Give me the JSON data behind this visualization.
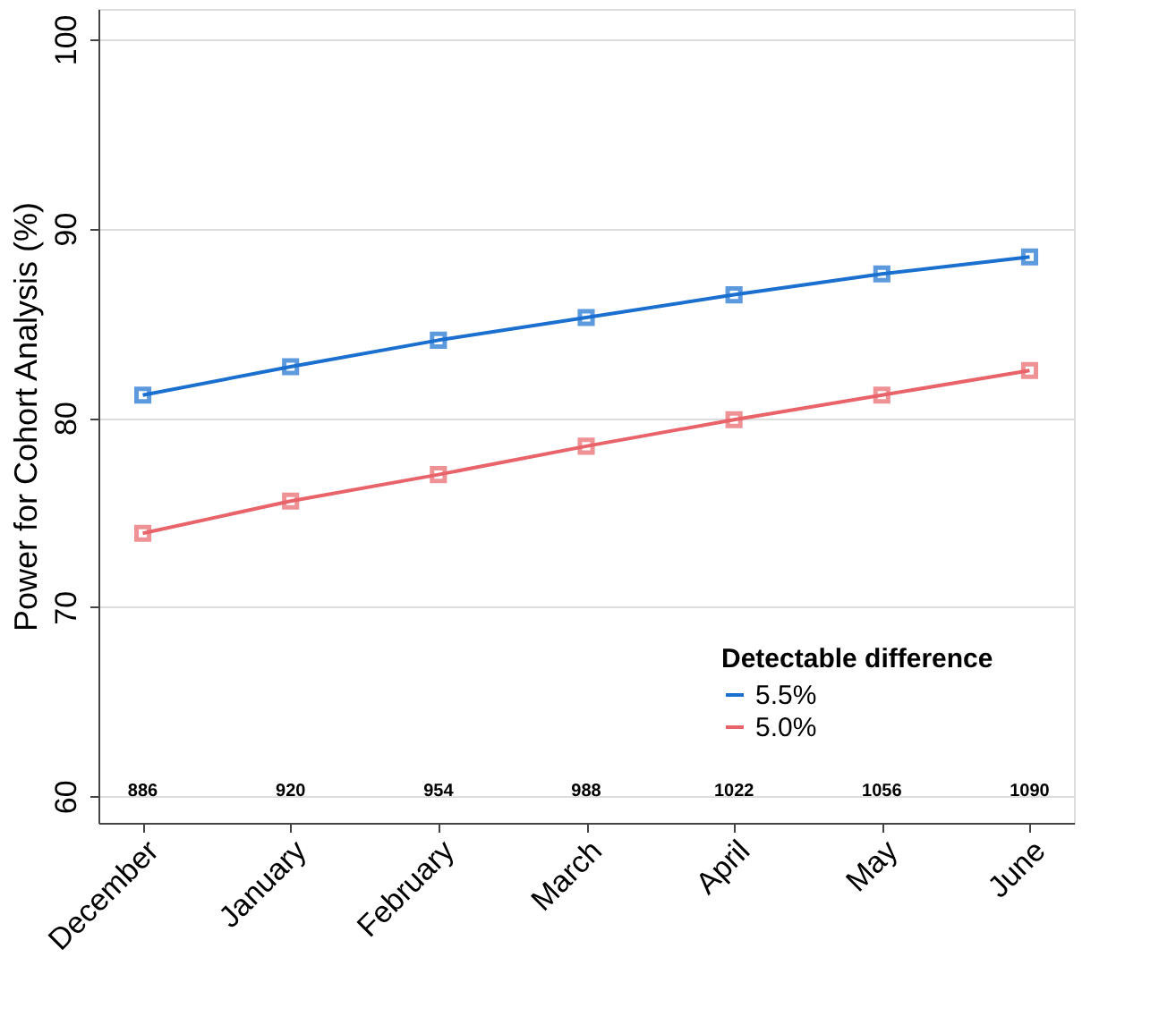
{
  "chart_data": {
    "type": "line",
    "ylabel": "Power for Cohort Analysis (%)",
    "legend_title": "Detectable difference",
    "categories": [
      "December",
      "January",
      "February",
      "March",
      "April",
      "May",
      "June"
    ],
    "series": [
      {
        "name": "5.5%",
        "color": "#1a6fcf",
        "values": [
          81.2,
          82.7,
          84.1,
          85.3,
          86.5,
          87.6,
          88.5
        ]
      },
      {
        "name": "5.0%",
        "color": "#e8646a",
        "values": [
          73.9,
          75.6,
          77.0,
          78.5,
          79.9,
          81.2,
          82.5
        ]
      }
    ],
    "ylim": [
      58.6,
      101.6
    ],
    "yticks": [
      60,
      70,
      80,
      90,
      100
    ],
    "grid": "y",
    "legend": "bottom right",
    "marker": "square",
    "line_style": "solid",
    "annotations": [
      "886",
      "920",
      "954",
      "988",
      "1022",
      "1056",
      "1090"
    ]
  }
}
